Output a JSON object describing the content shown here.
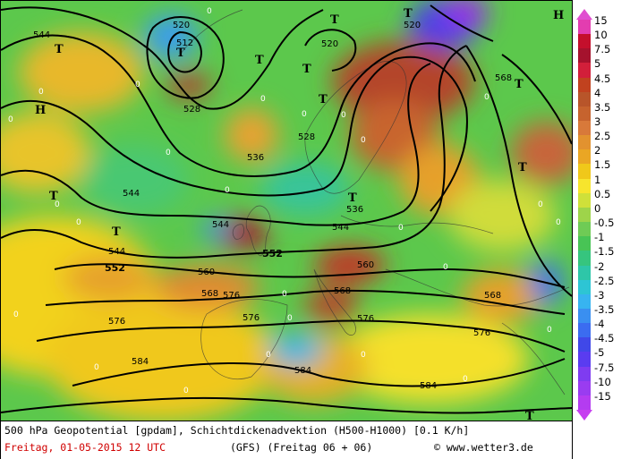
{
  "map": {
    "contour_labels": [
      "544",
      "520",
      "512",
      "520",
      "528",
      "528",
      "536",
      "544",
      "544",
      "544",
      "552",
      "552",
      "536",
      "520",
      "544",
      "568",
      "560",
      "568",
      "576",
      "560",
      "568",
      "576",
      "576",
      "568",
      "576",
      "584",
      "584",
      "584",
      "576"
    ],
    "zero_labels": [
      "0",
      "0",
      "0",
      "0",
      "0",
      "0",
      "0",
      "0",
      "0",
      "0",
      "0",
      "0",
      "0",
      "0",
      "0",
      "0",
      "0",
      "0",
      "0",
      "0",
      "0",
      "0",
      "0",
      "0",
      "0",
      "0"
    ],
    "pressure_centers": [
      "T",
      "T",
      "T",
      "T",
      "T",
      "T",
      "H",
      "T",
      "T",
      "T",
      "T",
      "H",
      "T",
      "T",
      "T"
    ],
    "colors": {
      "dark_red": "#8b0a1e",
      "red": "#c8102e",
      "brown": "#b4502a",
      "orange": "#e58a30",
      "yellow": "#f5e21a",
      "light_green": "#a8d84a",
      "green": "#4cc24a",
      "teal": "#2ec6a8",
      "cyan": "#35c6f0",
      "blue": "#3a6cf0",
      "violet": "#7a3cf0",
      "magenta": "#d040e0"
    }
  },
  "legend": {
    "labels": [
      "15",
      "10",
      "7.5",
      "5",
      "4.5",
      "4",
      "3.5",
      "3",
      "2.5",
      "2",
      "1.5",
      "1",
      "0.5",
      "0",
      "-0.5",
      "-1",
      "-1.5",
      "-2",
      "-2.5",
      "-3",
      "-3.5",
      "-4",
      "-4.5",
      "-5",
      "-7.5",
      "-10",
      "-15"
    ],
    "colors": [
      "#e33db0",
      "#c40f2c",
      "#a5122d",
      "#d21f3a",
      "#c1421f",
      "#b8552a",
      "#c6632e",
      "#d8793a",
      "#e2922f",
      "#eaa624",
      "#f0c81a",
      "#f7e52d",
      "#cfe03a",
      "#9ed44a",
      "#6fcb55",
      "#48c455",
      "#36c57e",
      "#2ec6a8",
      "#2dc5d4",
      "#37b4f0",
      "#3a8ff0",
      "#3b6cf0",
      "#4048e8",
      "#5a3cf0",
      "#7f3cf0",
      "#9a3cf0",
      "#b43cf0"
    ],
    "arrow_top_color": "#e04fd0",
    "arrow_bottom_color": "#c63ff0"
  },
  "footer": {
    "line1": "500 hPa Geopotential [gpdam], Schichtdickenadvektion (H500-H1000) [0.1 K/h]",
    "date": "Freitag, 01-05-2015  12 UTC",
    "model": "(GFS)  (Freitag 06 + 06)",
    "copyright": "© www.wetter3.de"
  }
}
